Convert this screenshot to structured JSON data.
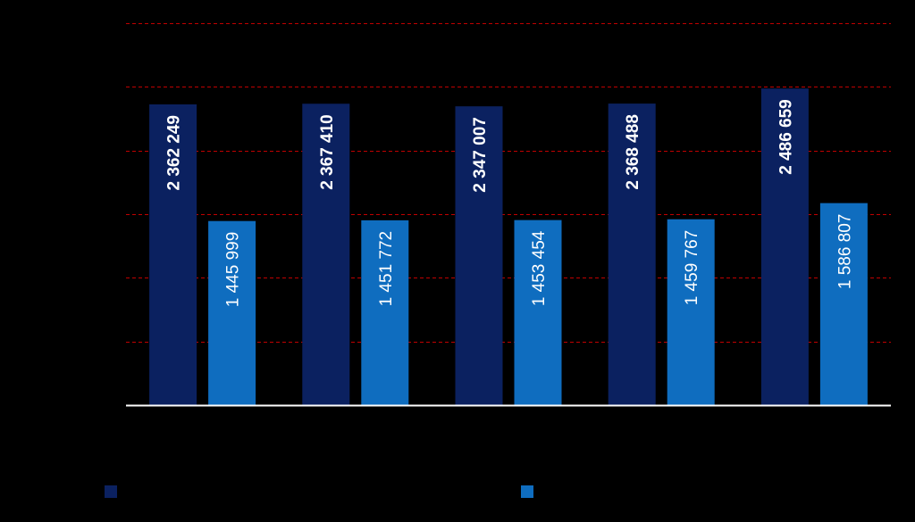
{
  "chart_data": {
    "type": "bar",
    "categories": [
      "",
      "",
      "",
      "",
      ""
    ],
    "series": [
      {
        "name": "",
        "color": "#0b2160",
        "values": [
          2362249,
          2367410,
          2347007,
          2368488,
          2486659
        ],
        "value_labels": [
          "2 362 249",
          "2 367 410",
          "2 347 007",
          "2 368 488",
          "2 486 659"
        ]
      },
      {
        "name": "",
        "color": "#0f6dbf",
        "values": [
          1445999,
          1451772,
          1453454,
          1459767,
          1586807
        ],
        "value_labels": [
          "1 445 999",
          "1 451 772",
          "1 453 454",
          "1 459 767",
          "1 586 807"
        ]
      }
    ],
    "title": "",
    "xlabel": "",
    "ylabel": "",
    "ylim": [
      0,
      3000000
    ],
    "y_gridline_step": 500000,
    "grid": true,
    "grid_color": "#c00000",
    "grid_style": "dashed",
    "axis_color": "#ffffff",
    "background": "#000000",
    "legend_position": "bottom",
    "data_labels": "inside-bar-rotated"
  }
}
